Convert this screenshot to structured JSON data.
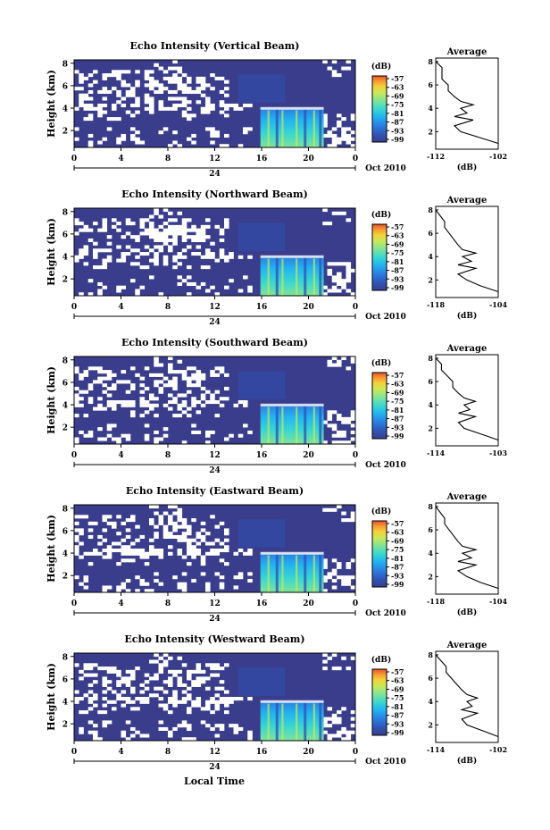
{
  "figure": {
    "date_label": "Oct 2010",
    "xlabel_bottom": "Local Time",
    "day_label": "24"
  },
  "colors": {
    "background": "#3a3d8c",
    "scale": [
      "#3a3d8c",
      "#2f55b8",
      "#2a7fe0",
      "#22b3f0",
      "#3ad7d0",
      "#7fe39a",
      "#c8e858",
      "#f4d03a",
      "#f59a32",
      "#e8502a"
    ]
  },
  "chart_data": [
    {
      "type": "heatmap",
      "title": "Echo Intensity (Vertical Beam)",
      "ylabel": "Height (km)",
      "x_ticks": [
        "0",
        "4",
        "8",
        "12",
        "16",
        "20",
        "0"
      ],
      "y_ticks": [
        "2",
        "4",
        "6",
        "8"
      ],
      "ylim": [
        0.5,
        8.3
      ],
      "xlim": [
        0,
        24
      ],
      "colorbar_label": "(dB)",
      "colorbar_ticks": [
        "-57",
        "-63",
        "-69",
        "-75",
        "-81",
        "-87",
        "-93",
        "-99"
      ],
      "profile": {
        "title": "Average",
        "xlabel": "(dB)",
        "x_ticks": [
          "-112",
          "-102"
        ],
        "xlim": [
          -112,
          -102
        ],
        "y_ticks": [
          "2",
          "4",
          "6",
          "8"
        ],
        "heights": [
          1,
          1.5,
          2,
          2.5,
          3,
          3.3,
          3.6,
          4,
          4.3,
          4.6,
          5,
          5.5,
          6,
          6.5,
          7,
          7.5,
          8
        ],
        "values": [
          -102,
          -105,
          -108,
          -109,
          -106,
          -109,
          -107,
          -108,
          -106,
          -108,
          -109,
          -110,
          -110,
          -111,
          -111,
          -111,
          -112
        ]
      }
    },
    {
      "type": "heatmap",
      "title": "Echo Intensity (Northward Beam)",
      "ylabel": "Height (km)",
      "x_ticks": [
        "0",
        "4",
        "8",
        "12",
        "16",
        "20",
        "0"
      ],
      "y_ticks": [
        "2",
        "4",
        "6",
        "8"
      ],
      "ylim": [
        0.5,
        8.3
      ],
      "xlim": [
        0,
        24
      ],
      "colorbar_label": "(dB)",
      "colorbar_ticks": [
        "-57",
        "-63",
        "-69",
        "-75",
        "-81",
        "-87",
        "-93",
        "-99"
      ],
      "profile": {
        "title": "Average",
        "xlabel": "(dB)",
        "x_ticks": [
          "-118",
          "-104"
        ],
        "xlim": [
          -118,
          -104
        ],
        "y_ticks": [
          "2",
          "4",
          "6",
          "8"
        ],
        "heights": [
          1,
          1.5,
          2,
          2.5,
          3,
          3.3,
          3.6,
          4,
          4.3,
          4.6,
          5,
          5.5,
          6,
          6.5,
          7,
          7.5,
          8
        ],
        "values": [
          -104,
          -108,
          -111,
          -113,
          -109,
          -113,
          -110,
          -112,
          -109,
          -112,
          -113,
          -114,
          -115,
          -116,
          -116,
          -117,
          -118
        ]
      }
    },
    {
      "type": "heatmap",
      "title": "Echo Intensity (Southward Beam)",
      "ylabel": "Height (km)",
      "x_ticks": [
        "0",
        "4",
        "8",
        "12",
        "16",
        "20",
        "0"
      ],
      "y_ticks": [
        "2",
        "4",
        "6",
        "8"
      ],
      "ylim": [
        0.5,
        8.3
      ],
      "xlim": [
        0,
        24
      ],
      "colorbar_label": "(dB)",
      "colorbar_ticks": [
        "-57",
        "-63",
        "-69",
        "-75",
        "-81",
        "-87",
        "-93",
        "-99"
      ],
      "profile": {
        "title": "Average",
        "xlabel": "",
        "x_ticks": [
          "-114",
          "-103"
        ],
        "xlim": [
          -114,
          -103
        ],
        "y_ticks": [
          "2",
          "4",
          "6",
          "8"
        ],
        "heights": [
          1,
          1.5,
          2,
          2.5,
          3,
          3.3,
          3.6,
          4,
          4.3,
          4.6,
          5,
          5.5,
          6,
          6.5,
          7,
          7.5,
          8
        ],
        "values": [
          -103,
          -106,
          -109,
          -110,
          -107,
          -110,
          -108,
          -109,
          -107,
          -109,
          -110,
          -111,
          -111,
          -112,
          -113,
          -113,
          -114
        ]
      }
    },
    {
      "type": "heatmap",
      "title": "Echo Intensity (Eastward Beam)",
      "ylabel": "Height (km)",
      "x_ticks": [
        "0",
        "4",
        "8",
        "12",
        "16",
        "20",
        "0"
      ],
      "y_ticks": [
        "2",
        "4",
        "6",
        "8"
      ],
      "ylim": [
        0.5,
        8.3
      ],
      "xlim": [
        0,
        24
      ],
      "colorbar_label": "(dB)",
      "colorbar_ticks": [
        "-57",
        "-63",
        "-69",
        "-75",
        "-81",
        "-87",
        "-93",
        "-99"
      ],
      "profile": {
        "title": "Average",
        "xlabel": "(dB)",
        "x_ticks": [
          "-118",
          "-104"
        ],
        "xlim": [
          -118,
          -104
        ],
        "y_ticks": [
          "2",
          "4",
          "6",
          "8"
        ],
        "heights": [
          1,
          1.5,
          2,
          2.5,
          3,
          3.3,
          3.6,
          4,
          4.3,
          4.6,
          5,
          5.5,
          6,
          6.5,
          7,
          7.5,
          8
        ],
        "values": [
          -104,
          -108,
          -111,
          -113,
          -109,
          -113,
          -110,
          -112,
          -109,
          -112,
          -113,
          -114,
          -115,
          -116,
          -116,
          -117,
          -118
        ]
      }
    },
    {
      "type": "heatmap",
      "title": "Echo Intensity (Westward Beam)",
      "ylabel": "Height (km)",
      "x_ticks": [
        "0",
        "4",
        "8",
        "12",
        "16",
        "20",
        "0"
      ],
      "y_ticks": [
        "2",
        "4",
        "6",
        "8"
      ],
      "ylim": [
        0.5,
        8.3
      ],
      "xlim": [
        0,
        24
      ],
      "colorbar_label": "(dB)",
      "colorbar_ticks": [
        "-57",
        "-63",
        "-69",
        "-75",
        "-81",
        "-87",
        "-93",
        "-99"
      ],
      "profile": {
        "title": "Average",
        "xlabel": "(dB)",
        "x_ticks": [
          "-114",
          "-102"
        ],
        "xlim": [
          -114,
          -102
        ],
        "y_ticks": [
          "2",
          "4",
          "6",
          "8"
        ],
        "heights": [
          1,
          1.5,
          2,
          2.5,
          3,
          3.3,
          3.6,
          4,
          4.3,
          4.6,
          5,
          5.5,
          6,
          6.5,
          7,
          7.5,
          8
        ],
        "values": [
          -102,
          -105,
          -108,
          -109,
          -106,
          -109,
          -107,
          -108,
          -106,
          -108,
          -109,
          -110,
          -111,
          -112,
          -112,
          -113,
          -114
        ]
      }
    }
  ]
}
